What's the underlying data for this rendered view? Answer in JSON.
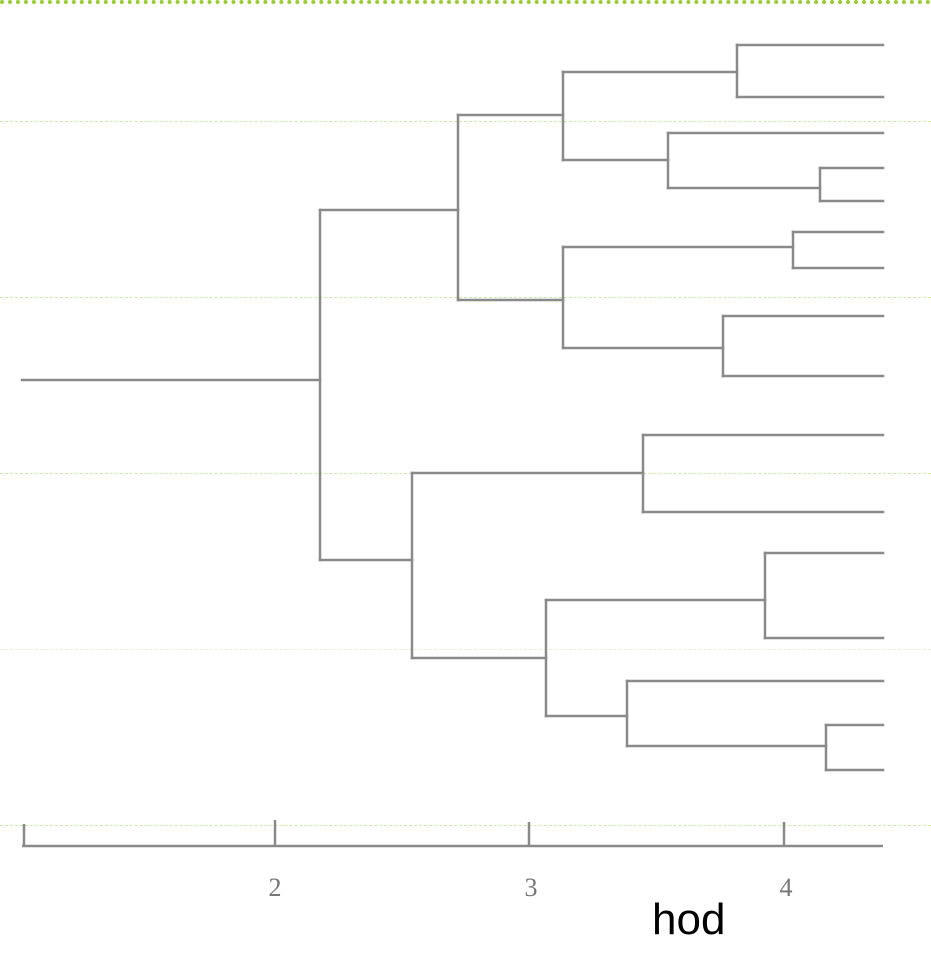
{
  "colors": {
    "tree_line": "#8a8a8a",
    "guide_line": "#b8d98a",
    "top_border": "#9acd32",
    "background": "#ffffff"
  },
  "scale_axis": {
    "tick_labels": [
      "2",
      "3",
      "4"
    ],
    "unit_label": "hod"
  }
}
